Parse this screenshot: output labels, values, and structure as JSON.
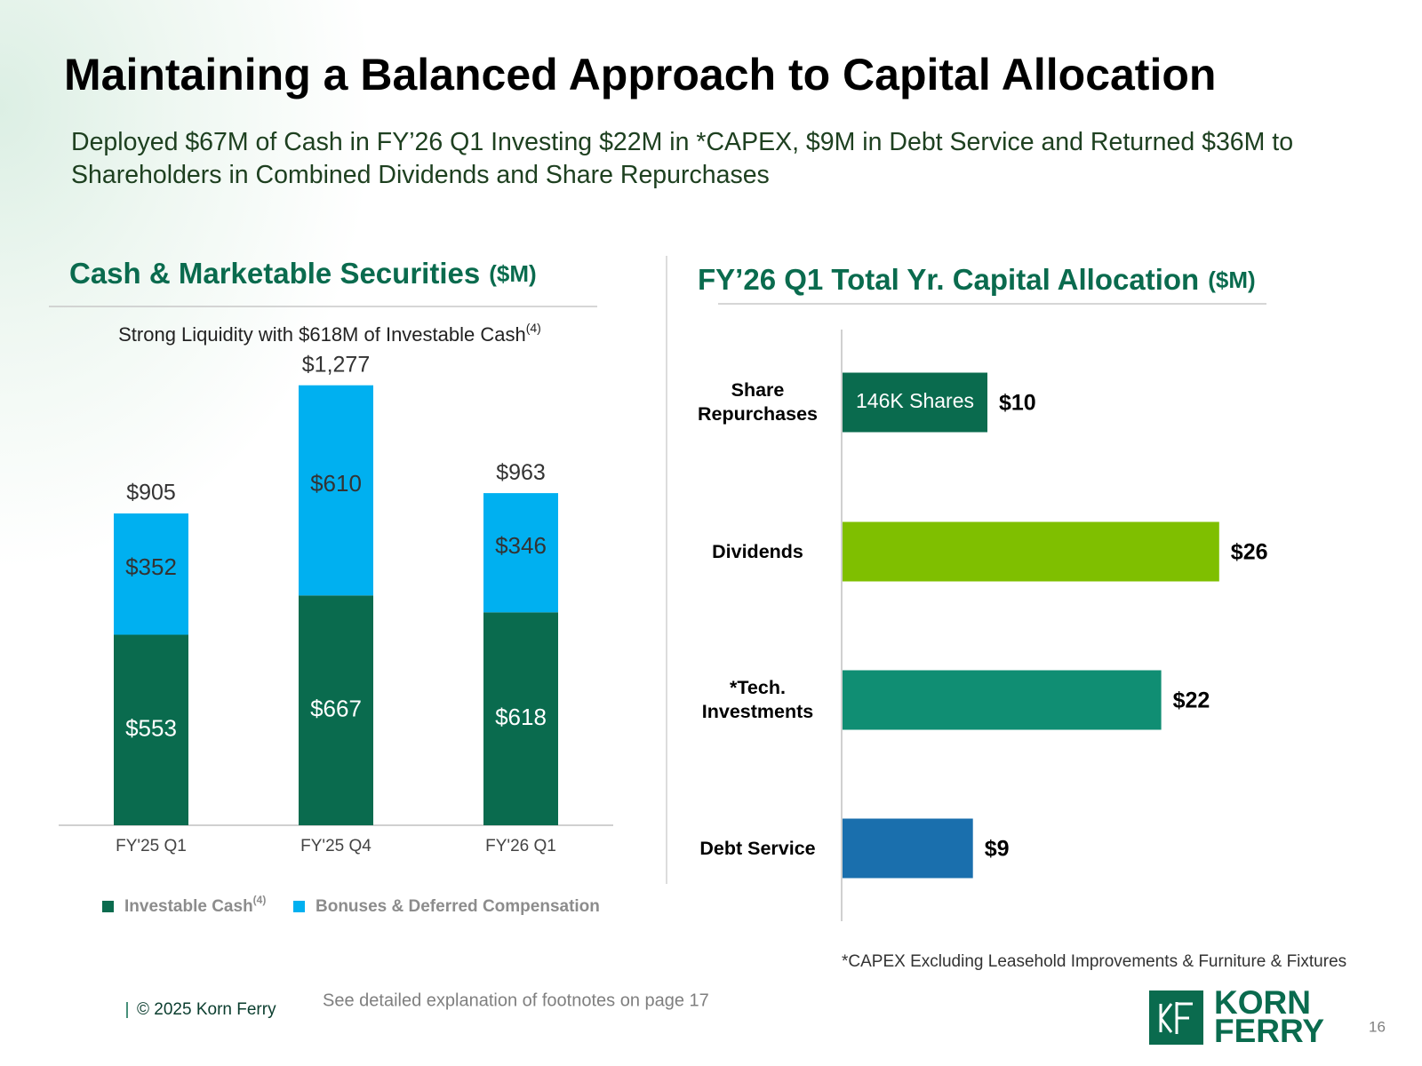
{
  "slide": {
    "title": "Maintaining a Balanced Approach to Capital Allocation",
    "subtitle": "Deployed $67M of Cash in FY’26 Q1 Investing $22M in *CAPEX, $9M in Debt Service and Returned $36M to Shareholders in Combined Dividends and Share Repurchases",
    "copyright": "© 2025 Korn Ferry",
    "footnote_reference": "See detailed explanation of footnotes on page 17",
    "logo": [
      "KORN",
      "FERRY"
    ],
    "page_number": "16"
  },
  "chart_data": [
    {
      "type": "stacked_bar",
      "title": "Cash & Marketable Securities",
      "unit": "($M)",
      "subtitle": "Strong Liquidity with $618M of Investable Cash",
      "subtitle_superscript": "(4)",
      "categories": [
        "FY'25 Q1",
        "FY'25 Q4",
        "FY'26 Q1"
      ],
      "series": [
        {
          "name": "Investable Cash",
          "name_superscript": "(4)",
          "color": "#0a6b4e",
          "values": [
            553,
            667,
            618
          ],
          "value_labels": [
            "$553",
            "$667",
            "$618"
          ]
        },
        {
          "name": "Bonuses & Deferred Compensation",
          "color": "#00b0f0",
          "values": [
            352,
            610,
            346
          ],
          "value_labels": [
            "$352",
            "$610",
            "$346"
          ]
        }
      ],
      "totals": [
        905,
        1277,
        963
      ],
      "total_labels": [
        "$905",
        "$1,277",
        "$963"
      ],
      "ylim": [
        0,
        1400
      ]
    },
    {
      "type": "hbar",
      "title": "FY’26 Q1 Total Yr. Capital Allocation",
      "unit": "($M)",
      "categories": [
        "Share Repurchases",
        "Dividends",
        "*Tech. Investments",
        "Debt Service"
      ],
      "values": [
        10,
        26,
        22,
        9
      ],
      "value_labels": [
        "$10",
        "$26",
        "$22",
        "$9"
      ],
      "colors": [
        "#0a6b4e",
        "#7fbf00",
        "#108e73",
        "#1a6fad"
      ],
      "bar_labels": [
        "146K Shares",
        null,
        null,
        null
      ],
      "xlim": [
        0,
        30
      ],
      "footnote": "*CAPEX Excluding Leasehold Improvements & Furniture & Fixtures"
    }
  ]
}
